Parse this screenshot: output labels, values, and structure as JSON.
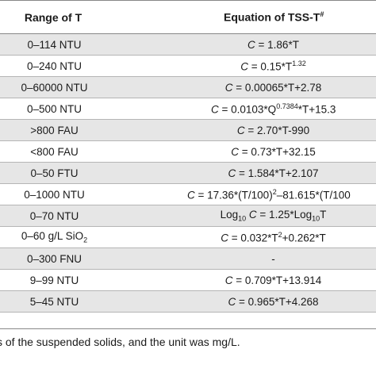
{
  "table": {
    "headers": [
      "Range of T",
      "Equation of TSS-T#"
    ],
    "rows": [
      {
        "range": "0–114 NTU",
        "equation": "C = 1.86*T"
      },
      {
        "range": "0–240 NTU",
        "equation": "C = 0.15*T^1.32"
      },
      {
        "range": "0–60000 NTU",
        "equation": "C = 0.00065*T+2.78"
      },
      {
        "range": "0–500 NTU",
        "equation": "C = 0.0103*Q^0.7384*T+15.3"
      },
      {
        "range": ">800 FAU",
        "equation": "C = 2.70*T-990"
      },
      {
        "range": "<800 FAU",
        "equation": "C = 0.73*T+32.15"
      },
      {
        "range": "0–50 FTU",
        "equation": "C = 1.584*T+2.107"
      },
      {
        "range": "0–1000 NTU",
        "equation": "C = 17.36*(T/100)^2–81.615*(T/100"
      },
      {
        "range": "0–70 NTU",
        "equation": "Log10 C = 1.25*Log10T"
      },
      {
        "range": "0–60 g/L SiO2",
        "equation": "C = 0.032*T^2+0.262*T"
      },
      {
        "range": "0–300 FNU",
        "equation": "-"
      },
      {
        "range": "9–99 NTU",
        "equation": "C = 0.709*T+13.914"
      },
      {
        "range": "5–45 NTU",
        "equation": "C = 0.965*T+4.268"
      }
    ]
  },
  "footnote": "s of the suspended solids, and the unit was mg/L."
}
